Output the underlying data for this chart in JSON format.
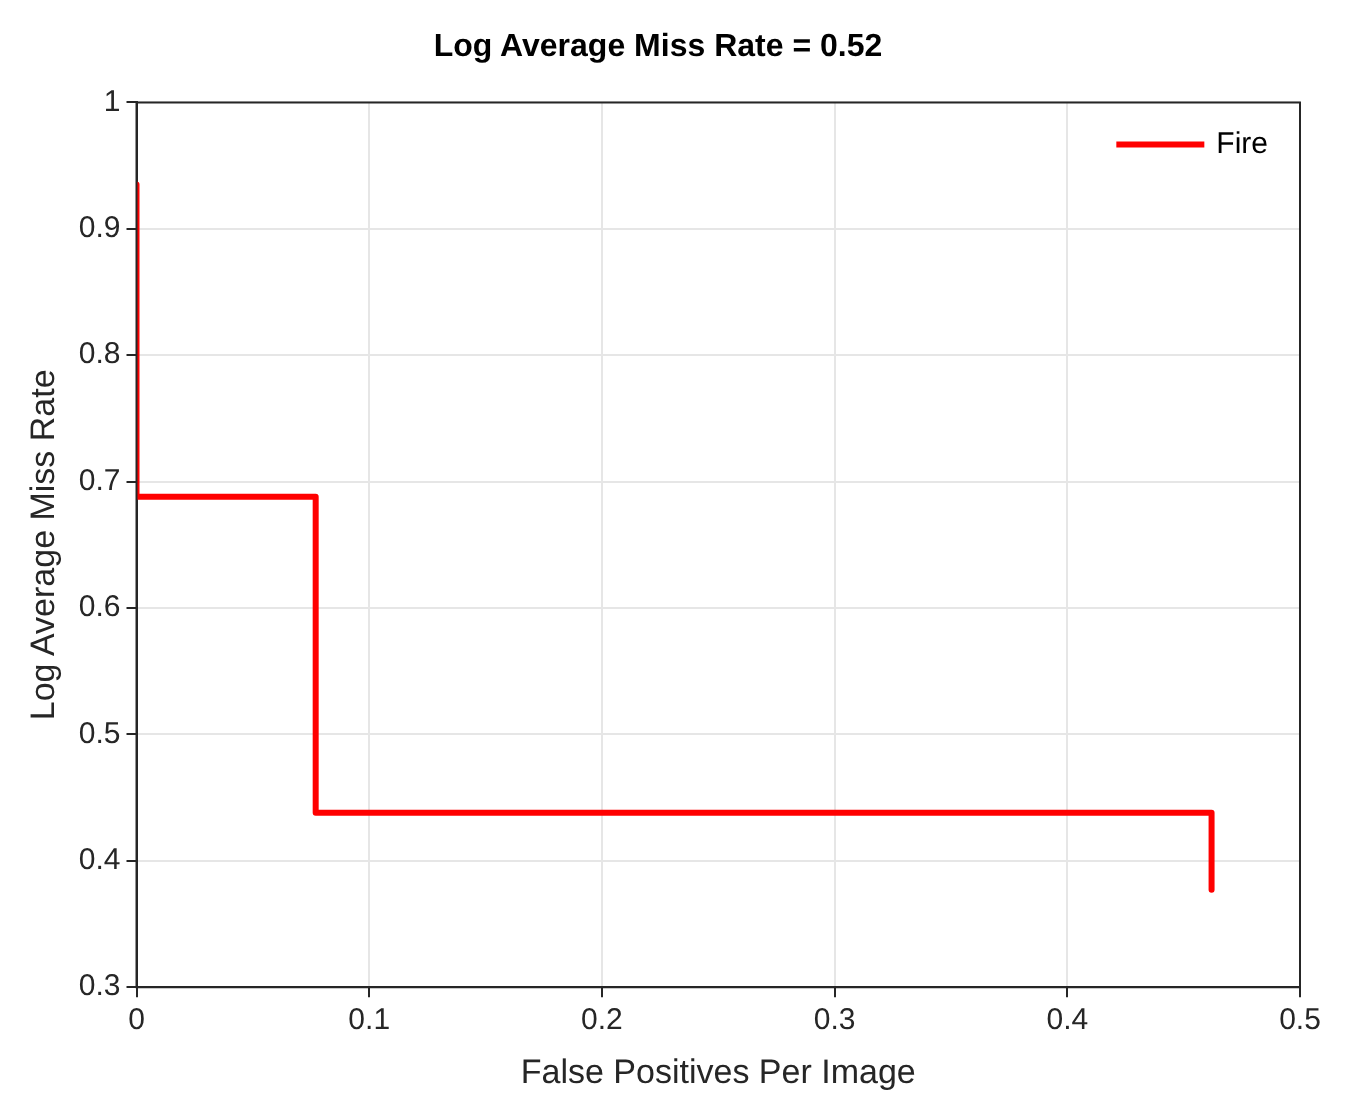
{
  "chart_data": {
    "type": "line",
    "title": "Log Average Miss Rate = 0.52",
    "xlabel": "False Positives Per Image",
    "ylabel": "Log Average Miss Rate",
    "xlim": [
      0,
      0.5
    ],
    "xticks": [
      0,
      0.1,
      0.2,
      0.3,
      0.4,
      0.5
    ],
    "ylim": [
      0.3,
      1
    ],
    "yticks": [
      0.3,
      0.4,
      0.5,
      0.6,
      0.7,
      0.8,
      0.9,
      1
    ],
    "grid": true,
    "legend": "top right",
    "marker": "none",
    "line_style": "solid",
    "series": [
      {
        "name": "Fire",
        "color": "#ff0000",
        "x": [
          0,
          0,
          0.077,
          0.077,
          0.462,
          0.462
        ],
        "values": [
          0.935,
          0.688,
          0.688,
          0.438,
          0.438,
          0.377
        ]
      }
    ]
  }
}
